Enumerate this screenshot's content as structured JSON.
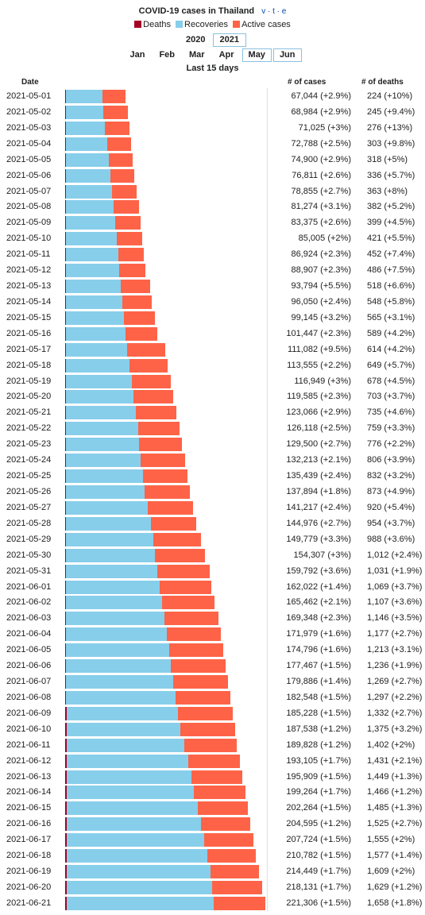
{
  "title": "COVID-19 cases in Thailand",
  "vte": "v · t · e",
  "legend": [
    {
      "label": "Deaths",
      "color": "#a50026"
    },
    {
      "label": "Recoveries",
      "color": "#87ceeb"
    },
    {
      "label": "Active cases",
      "color": "#ff6347"
    }
  ],
  "years": [
    {
      "label": "2020",
      "selected": false
    },
    {
      "label": "2021",
      "selected": true
    }
  ],
  "months": [
    {
      "label": "Jan",
      "selected": false
    },
    {
      "label": "Feb",
      "selected": false
    },
    {
      "label": "Mar",
      "selected": false
    },
    {
      "label": "Apr",
      "selected": false
    },
    {
      "label": "May",
      "selected": true
    },
    {
      "label": "Jun",
      "selected": true
    }
  ],
  "range_label": "Last 15 days",
  "columns": {
    "date": "Date",
    "cases": "# of cases",
    "deaths": "# of deaths"
  },
  "chart_data": {
    "type": "bar",
    "orientation": "horizontal-stacked",
    "series": [
      {
        "name": "Deaths",
        "color": "#a50026"
      },
      {
        "name": "Recoveries",
        "color": "#87ceeb"
      },
      {
        "name": "Active cases",
        "color": "#ff6347"
      }
    ],
    "xlim": [
      0,
      221306
    ],
    "rows": [
      {
        "date": "2021-05-01",
        "cases": 67044,
        "cases_label": "67,044 (+2.9%)",
        "deaths": 224,
        "deaths_label": "224 (+10%)",
        "recovered": 40000
      },
      {
        "date": "2021-05-02",
        "cases": 68984,
        "cases_label": "68,984 (+2.9%)",
        "deaths": 245,
        "deaths_label": "245 (+9.4%)",
        "recovered": 41500
      },
      {
        "date": "2021-05-03",
        "cases": 71025,
        "cases_label": "71,025 (+3%)",
        "deaths": 276,
        "deaths_label": "276 (+13%)",
        "recovered": 43200
      },
      {
        "date": "2021-05-04",
        "cases": 72788,
        "cases_label": "72,788 (+2.5%)",
        "deaths": 303,
        "deaths_label": "303 (+9.8%)",
        "recovered": 45300
      },
      {
        "date": "2021-05-05",
        "cases": 74900,
        "cases_label": "74,900 (+2.9%)",
        "deaths": 318,
        "deaths_label": "318 (+5%)",
        "recovered": 47300
      },
      {
        "date": "2021-05-06",
        "cases": 76811,
        "cases_label": "76,811 (+2.6%)",
        "deaths": 336,
        "deaths_label": "336 (+5.7%)",
        "recovered": 49300
      },
      {
        "date": "2021-05-07",
        "cases": 78855,
        "cases_label": "78,855 (+2.7%)",
        "deaths": 363,
        "deaths_label": "363 (+8%)",
        "recovered": 51000
      },
      {
        "date": "2021-05-08",
        "cases": 81274,
        "cases_label": "81,274 (+3.1%)",
        "deaths": 382,
        "deaths_label": "382 (+5.2%)",
        "recovered": 52800
      },
      {
        "date": "2021-05-09",
        "cases": 83375,
        "cases_label": "83,375 (+2.6%)",
        "deaths": 399,
        "deaths_label": "399 (+4.5%)",
        "recovered": 54600
      },
      {
        "date": "2021-05-10",
        "cases": 85005,
        "cases_label": "85,005 (+2%)",
        "deaths": 421,
        "deaths_label": "421 (+5.5%)",
        "recovered": 56200
      },
      {
        "date": "2021-05-11",
        "cases": 86924,
        "cases_label": "86,924 (+2.3%)",
        "deaths": 452,
        "deaths_label": "452 (+7.4%)",
        "recovered": 57600
      },
      {
        "date": "2021-05-12",
        "cases": 88907,
        "cases_label": "88,907 (+2.3%)",
        "deaths": 486,
        "deaths_label": "486 (+7.5%)",
        "recovered": 59000
      },
      {
        "date": "2021-05-13",
        "cases": 93794,
        "cases_label": "93,794 (+5.5%)",
        "deaths": 518,
        "deaths_label": "518 (+6.6%)",
        "recovered": 60500
      },
      {
        "date": "2021-05-14",
        "cases": 96050,
        "cases_label": "96,050 (+2.4%)",
        "deaths": 548,
        "deaths_label": "548 (+5.8%)",
        "recovered": 62000
      },
      {
        "date": "2021-05-15",
        "cases": 99145,
        "cases_label": "99,145 (+3.2%)",
        "deaths": 565,
        "deaths_label": "565 (+3.1%)",
        "recovered": 64000
      },
      {
        "date": "2021-05-16",
        "cases": 101447,
        "cases_label": "101,447 (+2.3%)",
        "deaths": 589,
        "deaths_label": "589 (+4.2%)",
        "recovered": 65700
      },
      {
        "date": "2021-05-17",
        "cases": 111082,
        "cases_label": "111,082 (+9.5%)",
        "deaths": 614,
        "deaths_label": "614 (+4.2%)",
        "recovered": 67300
      },
      {
        "date": "2021-05-18",
        "cases": 113555,
        "cases_label": "113,555 (+2.2%)",
        "deaths": 649,
        "deaths_label": "649 (+5.7%)",
        "recovered": 70000
      },
      {
        "date": "2021-05-19",
        "cases": 116949,
        "cases_label": "116,949 (+3%)",
        "deaths": 678,
        "deaths_label": "678 (+4.5%)",
        "recovered": 72500
      },
      {
        "date": "2021-05-20",
        "cases": 119585,
        "cases_label": "119,585 (+2.3%)",
        "deaths": 703,
        "deaths_label": "703 (+3.7%)",
        "recovered": 75000
      },
      {
        "date": "2021-05-21",
        "cases": 123066,
        "cases_label": "123,066 (+2.9%)",
        "deaths": 735,
        "deaths_label": "735 (+4.6%)",
        "recovered": 77500
      },
      {
        "date": "2021-05-22",
        "cases": 126118,
        "cases_label": "126,118 (+2.5%)",
        "deaths": 759,
        "deaths_label": "759 (+3.3%)",
        "recovered": 79500
      },
      {
        "date": "2021-05-23",
        "cases": 129500,
        "cases_label": "129,500 (+2.7%)",
        "deaths": 776,
        "deaths_label": "776 (+2.2%)",
        "recovered": 81200
      },
      {
        "date": "2021-05-24",
        "cases": 132213,
        "cases_label": "132,213 (+2.1%)",
        "deaths": 806,
        "deaths_label": "806 (+3.9%)",
        "recovered": 82500
      },
      {
        "date": "2021-05-25",
        "cases": 135439,
        "cases_label": "135,439 (+2.4%)",
        "deaths": 832,
        "deaths_label": "832 (+3.2%)",
        "recovered": 85000
      },
      {
        "date": "2021-05-26",
        "cases": 137894,
        "cases_label": "137,894 (+1.8%)",
        "deaths": 873,
        "deaths_label": "873 (+4.9%)",
        "recovered": 87000
      },
      {
        "date": "2021-05-27",
        "cases": 141217,
        "cases_label": "141,217 (+2.4%)",
        "deaths": 920,
        "deaths_label": "920 (+5.4%)",
        "recovered": 90500
      },
      {
        "date": "2021-05-28",
        "cases": 144976,
        "cases_label": "144,976 (+2.7%)",
        "deaths": 954,
        "deaths_label": "954 (+3.7%)",
        "recovered": 93500
      },
      {
        "date": "2021-05-29",
        "cases": 149779,
        "cases_label": "149,779 (+3.3%)",
        "deaths": 988,
        "deaths_label": "988 (+3.6%)",
        "recovered": 96500
      },
      {
        "date": "2021-05-30",
        "cases": 154307,
        "cases_label": "154,307 (+3%)",
        "deaths": 1012,
        "deaths_label": "1,012 (+2.4%)",
        "recovered": 98500
      },
      {
        "date": "2021-05-31",
        "cases": 159792,
        "cases_label": "159,792 (+3.6%)",
        "deaths": 1031,
        "deaths_label": "1,031 (+1.9%)",
        "recovered": 101000
      },
      {
        "date": "2021-06-01",
        "cases": 162022,
        "cases_label": "162,022 (+1.4%)",
        "deaths": 1069,
        "deaths_label": "1,069 (+3.7%)",
        "recovered": 103500
      },
      {
        "date": "2021-06-02",
        "cases": 165462,
        "cases_label": "165,462 (+2.1%)",
        "deaths": 1107,
        "deaths_label": "1,107 (+3.6%)",
        "recovered": 105800
      },
      {
        "date": "2021-06-03",
        "cases": 169348,
        "cases_label": "169,348 (+2.3%)",
        "deaths": 1146,
        "deaths_label": "1,146 (+3.5%)",
        "recovered": 108200
      },
      {
        "date": "2021-06-04",
        "cases": 171979,
        "cases_label": "171,979 (+1.6%)",
        "deaths": 1177,
        "deaths_label": "1,177 (+2.7%)",
        "recovered": 111000
      },
      {
        "date": "2021-06-05",
        "cases": 174796,
        "cases_label": "174,796 (+1.6%)",
        "deaths": 1213,
        "deaths_label": "1,213 (+3.1%)",
        "recovered": 113500
      },
      {
        "date": "2021-06-06",
        "cases": 177467,
        "cases_label": "177,467 (+1.5%)",
        "deaths": 1236,
        "deaths_label": "1,236 (+1.9%)",
        "recovered": 115800
      },
      {
        "date": "2021-06-07",
        "cases": 179886,
        "cases_label": "179,886 (+1.4%)",
        "deaths": 1269,
        "deaths_label": "1,269 (+2.7%)",
        "recovered": 118000
      },
      {
        "date": "2021-06-08",
        "cases": 182548,
        "cases_label": "182,548 (+1.5%)",
        "deaths": 1297,
        "deaths_label": "1,297 (+2.2%)",
        "recovered": 120500
      },
      {
        "date": "2021-06-09",
        "cases": 185228,
        "cases_label": "185,228 (+1.5%)",
        "deaths": 1332,
        "deaths_label": "1,332 (+2.7%)",
        "recovered": 123000
      },
      {
        "date": "2021-06-10",
        "cases": 187538,
        "cases_label": "187,538 (+1.2%)",
        "deaths": 1375,
        "deaths_label": "1,375 (+3.2%)",
        "recovered": 126000
      },
      {
        "date": "2021-06-11",
        "cases": 189828,
        "cases_label": "189,828 (+1.2%)",
        "deaths": 1402,
        "deaths_label": "1,402 (+2%)",
        "recovered": 130000
      },
      {
        "date": "2021-06-12",
        "cases": 193105,
        "cases_label": "193,105 (+1.7%)",
        "deaths": 1431,
        "deaths_label": "1,431 (+2.1%)",
        "recovered": 135000
      },
      {
        "date": "2021-06-13",
        "cases": 195909,
        "cases_label": "195,909 (+1.5%)",
        "deaths": 1449,
        "deaths_label": "1,449 (+1.3%)",
        "recovered": 138000
      },
      {
        "date": "2021-06-14",
        "cases": 199264,
        "cases_label": "199,264 (+1.7%)",
        "deaths": 1466,
        "deaths_label": "1,466 (+1.2%)",
        "recovered": 141000
      },
      {
        "date": "2021-06-15",
        "cases": 202264,
        "cases_label": "202,264 (+1.5%)",
        "deaths": 1485,
        "deaths_label": "1,485 (+1.3%)",
        "recovered": 145000
      },
      {
        "date": "2021-06-16",
        "cases": 204595,
        "cases_label": "204,595 (+1.2%)",
        "deaths": 1525,
        "deaths_label": "1,525 (+2.7%)",
        "recovered": 149000
      },
      {
        "date": "2021-06-17",
        "cases": 207724,
        "cases_label": "207,724 (+1.5%)",
        "deaths": 1555,
        "deaths_label": "1,555 (+2%)",
        "recovered": 152500
      },
      {
        "date": "2021-06-18",
        "cases": 210782,
        "cases_label": "210,782 (+1.5%)",
        "deaths": 1577,
        "deaths_label": "1,577 (+1.4%)",
        "recovered": 156000
      },
      {
        "date": "2021-06-19",
        "cases": 214449,
        "cases_label": "214,449 (+1.7%)",
        "deaths": 1609,
        "deaths_label": "1,609 (+2%)",
        "recovered": 159000
      },
      {
        "date": "2021-06-20",
        "cases": 218131,
        "cases_label": "218,131 (+1.7%)",
        "deaths": 1629,
        "deaths_label": "1,629 (+1.2%)",
        "recovered": 161000
      },
      {
        "date": "2021-06-21",
        "cases": 221306,
        "cases_label": "221,306 (+1.5%)",
        "deaths": 1658,
        "deaths_label": "1,658 (+1.8%)",
        "recovered": 163000
      }
    ]
  }
}
